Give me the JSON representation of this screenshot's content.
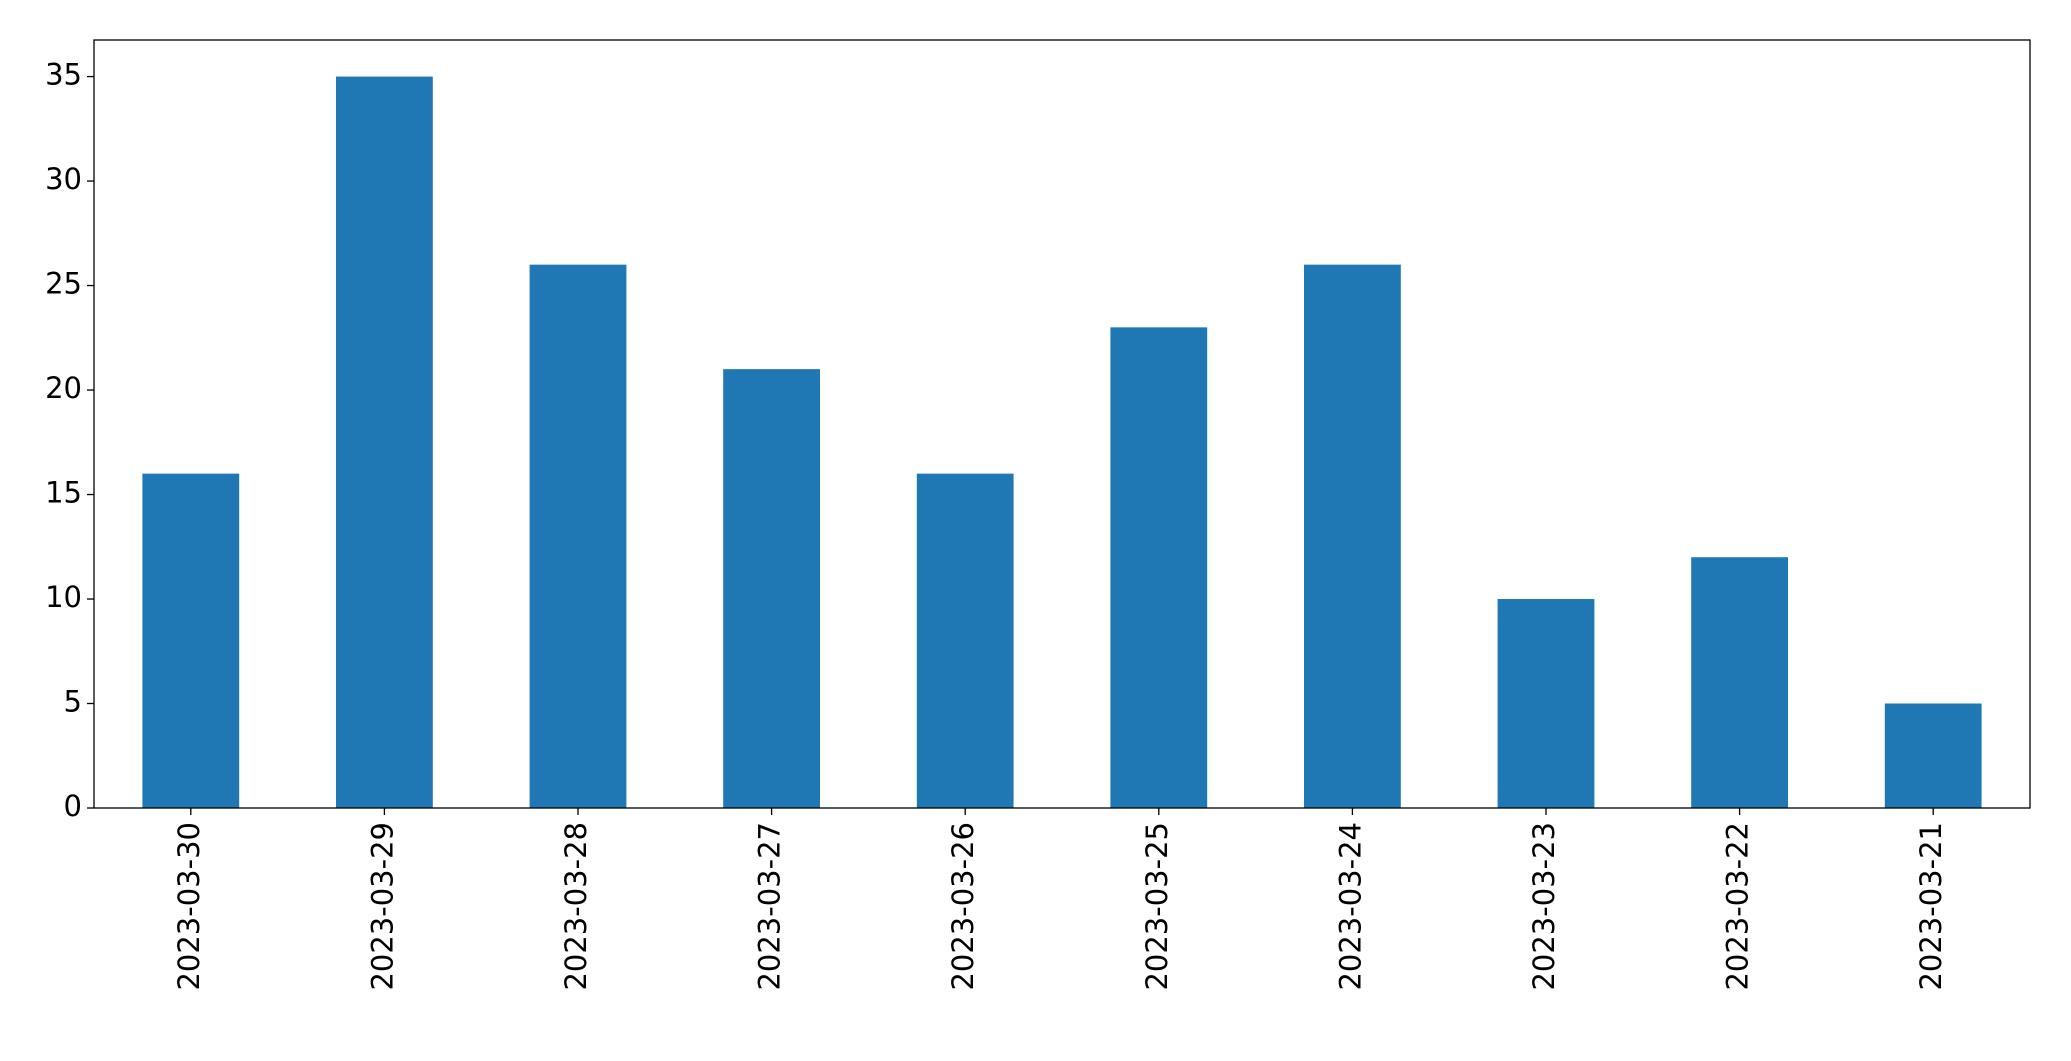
{
  "chart_data": {
    "type": "bar",
    "categories": [
      "2023-03-30",
      "2023-03-29",
      "2023-03-28",
      "2023-03-27",
      "2023-03-26",
      "2023-03-25",
      "2023-03-24",
      "2023-03-23",
      "2023-03-22",
      "2023-03-21"
    ],
    "values": [
      16,
      35,
      26,
      21,
      16,
      23,
      26,
      10,
      12,
      5
    ],
    "color": "#1f77b4",
    "ylim": [
      0,
      36.75
    ],
    "yticks": [
      0,
      5,
      10,
      15,
      20,
      25,
      30,
      35
    ],
    "grid": false
  }
}
